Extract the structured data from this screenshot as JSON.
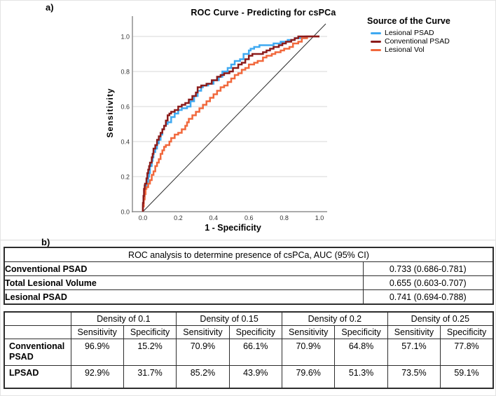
{
  "figure": {
    "panel_a_label": "a)",
    "panel_b_label": "b)"
  },
  "chart_data": [
    {
      "type": "line",
      "title": "ROC Curve - Predicting for csPCa",
      "xlabel": "1 - Specificity",
      "ylabel": "Sensitivity",
      "legend_title": "Source of the Curve",
      "legend_position": "right-top",
      "xlim": [
        0,
        1.05
      ],
      "ylim": [
        0,
        1.08
      ],
      "xticks": [
        "0.0",
        "0.2",
        "0.4",
        "0.6",
        "0.8",
        "1.0"
      ],
      "yticks": [
        "0.0",
        "0.2",
        "0.4",
        "0.6",
        "0.8",
        "1.0"
      ],
      "grid": "horizontal-only",
      "grid_color": "#d7d7d7",
      "axis_color": "#8f8f8f",
      "tick_label_color": "#333333",
      "reference_line": {
        "name": "diagonal-chance-line",
        "color": "#2d2d2d"
      },
      "series": [
        {
          "name": "Lesional PSAD",
          "color": "#3FA9F1",
          "points": [
            [
              0,
              0
            ],
            [
              0.005,
              0.04
            ],
            [
              0.01,
              0.08
            ],
            [
              0.015,
              0.12
            ],
            [
              0.02,
              0.14
            ],
            [
              0.03,
              0.17
            ],
            [
              0.035,
              0.2
            ],
            [
              0.04,
              0.22
            ],
            [
              0.05,
              0.26
            ],
            [
              0.055,
              0.29
            ],
            [
              0.06,
              0.31
            ],
            [
              0.07,
              0.34
            ],
            [
              0.08,
              0.36
            ],
            [
              0.09,
              0.39
            ],
            [
              0.1,
              0.41
            ],
            [
              0.11,
              0.44
            ],
            [
              0.12,
              0.47
            ],
            [
              0.13,
              0.49
            ],
            [
              0.14,
              0.5
            ],
            [
              0.16,
              0.51
            ],
            [
              0.18,
              0.54
            ],
            [
              0.2,
              0.56
            ],
            [
              0.22,
              0.58
            ],
            [
              0.25,
              0.59
            ],
            [
              0.27,
              0.6
            ],
            [
              0.29,
              0.63
            ],
            [
              0.31,
              0.66
            ],
            [
              0.33,
              0.69
            ],
            [
              0.34,
              0.71
            ],
            [
              0.37,
              0.72
            ],
            [
              0.4,
              0.73
            ],
            [
              0.43,
              0.75
            ],
            [
              0.45,
              0.77
            ],
            [
              0.48,
              0.8
            ],
            [
              0.5,
              0.82
            ],
            [
              0.52,
              0.84
            ],
            [
              0.55,
              0.86
            ],
            [
              0.57,
              0.87
            ],
            [
              0.6,
              0.9
            ],
            [
              0.61,
              0.92
            ],
            [
              0.63,
              0.93
            ],
            [
              0.66,
              0.94
            ],
            [
              0.7,
              0.95
            ],
            [
              0.74,
              0.95
            ],
            [
              0.78,
              0.96
            ],
            [
              0.82,
              0.97
            ],
            [
              0.86,
              0.98
            ],
            [
              0.88,
              0.99
            ],
            [
              0.92,
              0.99
            ],
            [
              0.96,
              1
            ],
            [
              1,
              1
            ]
          ]
        },
        {
          "name": "Conventional PSAD",
          "color": "#8B1B1A",
          "points": [
            [
              0,
              0
            ],
            [
              0.003,
              0.05
            ],
            [
              0.006,
              0.09
            ],
            [
              0.01,
              0.13
            ],
            [
              0.012,
              0.15
            ],
            [
              0.02,
              0.16
            ],
            [
              0.025,
              0.19
            ],
            [
              0.03,
              0.22
            ],
            [
              0.035,
              0.24
            ],
            [
              0.04,
              0.26
            ],
            [
              0.05,
              0.28
            ],
            [
              0.055,
              0.31
            ],
            [
              0.06,
              0.33
            ],
            [
              0.07,
              0.36
            ],
            [
              0.08,
              0.38
            ],
            [
              0.09,
              0.41
            ],
            [
              0.1,
              0.43
            ],
            [
              0.11,
              0.45
            ],
            [
              0.12,
              0.47
            ],
            [
              0.13,
              0.49
            ],
            [
              0.14,
              0.52
            ],
            [
              0.15,
              0.55
            ],
            [
              0.16,
              0.56
            ],
            [
              0.18,
              0.57
            ],
            [
              0.2,
              0.58
            ],
            [
              0.22,
              0.6
            ],
            [
              0.24,
              0.61
            ],
            [
              0.26,
              0.62
            ],
            [
              0.28,
              0.64
            ],
            [
              0.3,
              0.66
            ],
            [
              0.31,
              0.68
            ],
            [
              0.33,
              0.71
            ],
            [
              0.36,
              0.72
            ],
            [
              0.39,
              0.73
            ],
            [
              0.42,
              0.75
            ],
            [
              0.44,
              0.77
            ],
            [
              0.46,
              0.78
            ],
            [
              0.49,
              0.79
            ],
            [
              0.51,
              0.8
            ],
            [
              0.54,
              0.82
            ],
            [
              0.56,
              0.84
            ],
            [
              0.58,
              0.85
            ],
            [
              0.6,
              0.87
            ],
            [
              0.62,
              0.89
            ],
            [
              0.63,
              0.9
            ],
            [
              0.68,
              0.9
            ],
            [
              0.7,
              0.91
            ],
            [
              0.72,
              0.92
            ],
            [
              0.74,
              0.93
            ],
            [
              0.77,
              0.94
            ],
            [
              0.79,
              0.95
            ],
            [
              0.81,
              0.96
            ],
            [
              0.84,
              0.97
            ],
            [
              0.86,
              0.98
            ],
            [
              0.88,
              0.99
            ],
            [
              0.9,
              1
            ],
            [
              1,
              1
            ]
          ]
        },
        {
          "name": "Lesional Vol",
          "color": "#F1683C",
          "points": [
            [
              0,
              0
            ],
            [
              0.005,
              0.03
            ],
            [
              0.01,
              0.07
            ],
            [
              0.015,
              0.1
            ],
            [
              0.02,
              0.13
            ],
            [
              0.03,
              0.14
            ],
            [
              0.04,
              0.16
            ],
            [
              0.05,
              0.18
            ],
            [
              0.06,
              0.21
            ],
            [
              0.07,
              0.23
            ],
            [
              0.08,
              0.26
            ],
            [
              0.09,
              0.28
            ],
            [
              0.1,
              0.3
            ],
            [
              0.11,
              0.33
            ],
            [
              0.12,
              0.35
            ],
            [
              0.13,
              0.37
            ],
            [
              0.15,
              0.38
            ],
            [
              0.16,
              0.4
            ],
            [
              0.18,
              0.42
            ],
            [
              0.2,
              0.44
            ],
            [
              0.22,
              0.45
            ],
            [
              0.24,
              0.47
            ],
            [
              0.25,
              0.49
            ],
            [
              0.26,
              0.51
            ],
            [
              0.28,
              0.53
            ],
            [
              0.3,
              0.55
            ],
            [
              0.32,
              0.57
            ],
            [
              0.34,
              0.59
            ],
            [
              0.36,
              0.61
            ],
            [
              0.38,
              0.63
            ],
            [
              0.4,
              0.65
            ],
            [
              0.42,
              0.67
            ],
            [
              0.44,
              0.69
            ],
            [
              0.46,
              0.71
            ],
            [
              0.48,
              0.72
            ],
            [
              0.5,
              0.74
            ],
            [
              0.52,
              0.76
            ],
            [
              0.54,
              0.78
            ],
            [
              0.56,
              0.79
            ],
            [
              0.58,
              0.81
            ],
            [
              0.6,
              0.82
            ],
            [
              0.63,
              0.84
            ],
            [
              0.65,
              0.85
            ],
            [
              0.68,
              0.86
            ],
            [
              0.7,
              0.88
            ],
            [
              0.73,
              0.89
            ],
            [
              0.75,
              0.9
            ],
            [
              0.78,
              0.91
            ],
            [
              0.8,
              0.92
            ],
            [
              0.83,
              0.93
            ],
            [
              0.85,
              0.94
            ],
            [
              0.88,
              0.96
            ],
            [
              0.9,
              0.97
            ],
            [
              0.93,
              0.99
            ],
            [
              0.95,
              1
            ],
            [
              1,
              1
            ]
          ]
        }
      ]
    },
    {
      "type": "table",
      "title": "ROC analysis to determine presence of csPCa, AUC (95% CI)",
      "rows": [
        {
          "label": "Conventional PSAD",
          "value": "0.733 (0.686-0.781)"
        },
        {
          "label": "Total Lesional Volume",
          "value": "0.655 (0.603-0.707)"
        },
        {
          "label": "Lesional PSAD",
          "value": "0.741 (0.694-0.788)"
        }
      ]
    },
    {
      "type": "table",
      "col_groups": [
        "Density of 0.1",
        "Density of 0.15",
        "Density of 0.2",
        "Density of 0.25"
      ],
      "sub_headers": [
        "Sensitivity",
        "Specificity"
      ],
      "rows": [
        {
          "label": "Conventional PSAD",
          "values": [
            "96.9%",
            "15.2%",
            "70.9%",
            "66.1%",
            "70.9%",
            "64.8%",
            "57.1%",
            "77.8%"
          ]
        },
        {
          "label": "LPSAD",
          "values": [
            "92.9%",
            "31.7%",
            "85.2%",
            "43.9%",
            "79.6%",
            "51.3%",
            "73.5%",
            "59.1%"
          ]
        }
      ]
    }
  ]
}
